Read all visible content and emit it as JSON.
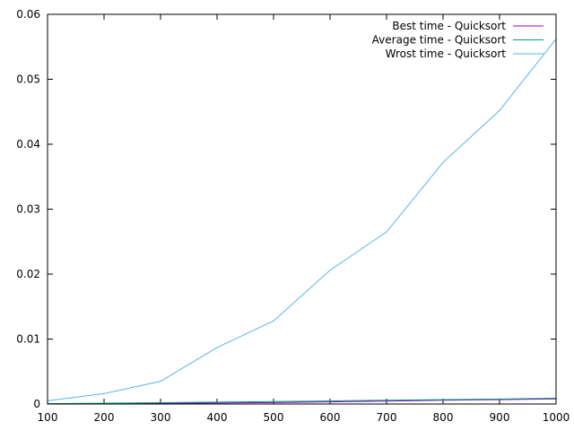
{
  "chart_data": {
    "type": "line",
    "title": "",
    "xlabel": "",
    "ylabel": "",
    "xlim": [
      100,
      1000
    ],
    "ylim": [
      0,
      0.06
    ],
    "grid": false,
    "legend_position": "top-right",
    "x_ticks": [
      "100",
      "200",
      "300",
      "400",
      "500",
      "600",
      "700",
      "800",
      "900",
      "1000"
    ],
    "y_ticks": [
      "0",
      "0.01",
      "0.02",
      "0.03",
      "0.04",
      "0.05",
      "0.06"
    ],
    "x": [
      100,
      200,
      300,
      400,
      500,
      600,
      700,
      800,
      900,
      1000
    ],
    "series": [
      {
        "name": "Best time - Quicksort",
        "color": "#9400d3",
        "values": [
          3e-05,
          7e-05,
          0.00011,
          0.00016,
          0.00022,
          0.00033,
          0.00045,
          0.00058,
          0.00068,
          0.0008
        ]
      },
      {
        "name": "Average time - Quicksort",
        "color": "#009e73",
        "values": [
          5e-05,
          0.00012,
          0.0002,
          0.0003,
          0.00038,
          0.00047,
          0.00058,
          0.00068,
          0.00075,
          0.0009
        ]
      },
      {
        "name": "Wrost time - Quicksort",
        "color": "#56b4e9",
        "values": [
          0.0005,
          0.0016,
          0.0035,
          0.0087,
          0.0128,
          0.0206,
          0.0265,
          0.0372,
          0.0452,
          0.0562
        ]
      }
    ]
  }
}
